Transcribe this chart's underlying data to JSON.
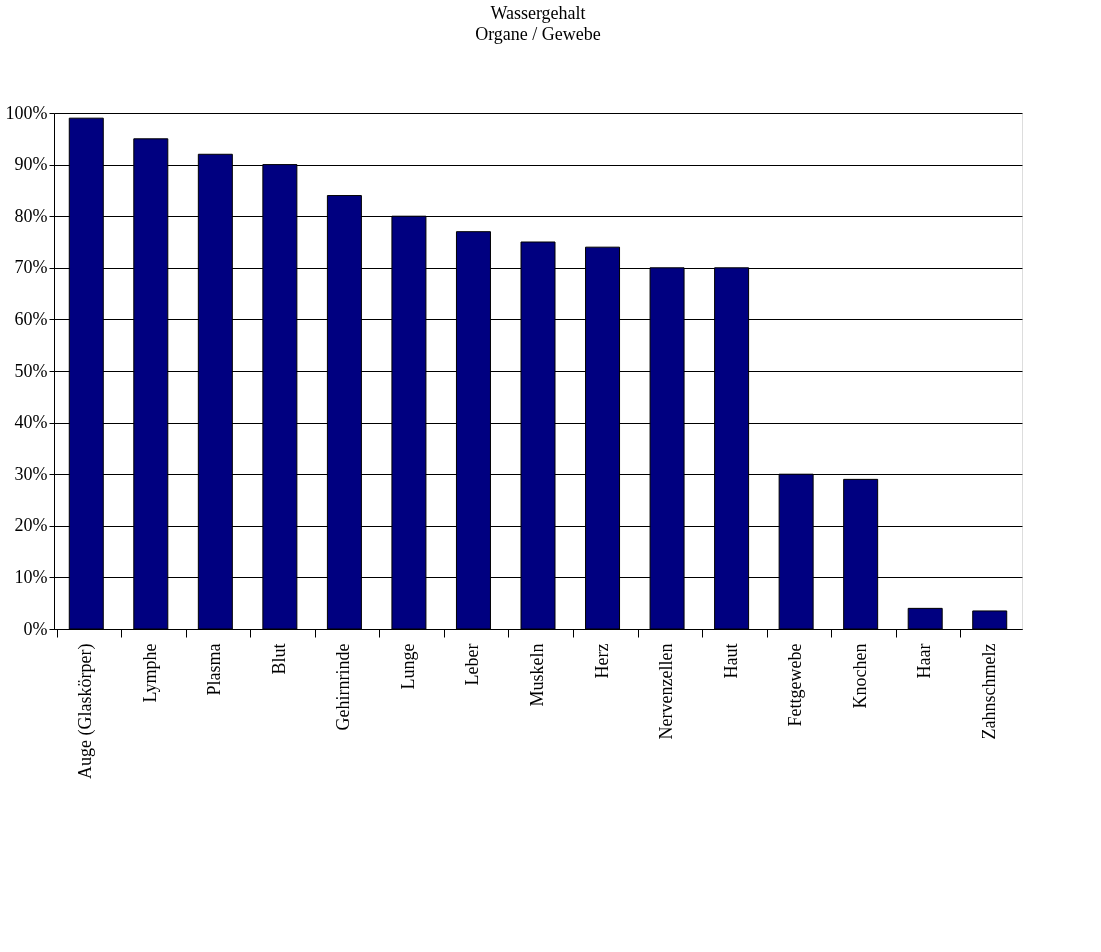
{
  "chart_data": {
    "type": "bar",
    "title": "Wassergehalt",
    "subtitle": "Organe / Gewebe",
    "categories": [
      "Auge (Glaskörper)",
      "Lymphe",
      "Plasma",
      "Blut",
      "Gehirnrinde",
      "Lunge",
      "Leber",
      "Muskeln",
      "Herz",
      "Nervenzellen",
      "Haut",
      "Fettgewebe",
      "Knochen",
      "Haar",
      "Zahnschmelz"
    ],
    "values": [
      99,
      95,
      92,
      90,
      84,
      80,
      77,
      75,
      74,
      70,
      70,
      30,
      29,
      4,
      3.5
    ],
    "color": "#000080",
    "ylim": [
      0,
      100
    ],
    "yticks": [
      {
        "value": 0,
        "label": "0%"
      },
      {
        "value": 10,
        "label": "10%"
      },
      {
        "value": 20,
        "label": "20%"
      },
      {
        "value": 30,
        "label": "30%"
      },
      {
        "value": 40,
        "label": "40%"
      },
      {
        "value": 50,
        "label": "50%"
      },
      {
        "value": 60,
        "label": "60%"
      },
      {
        "value": 70,
        "label": "70%"
      },
      {
        "value": 80,
        "label": "80%"
      },
      {
        "value": 90,
        "label": "90%"
      },
      {
        "value": 100,
        "label": "100%"
      }
    ],
    "grid": "y",
    "legend": false
  }
}
